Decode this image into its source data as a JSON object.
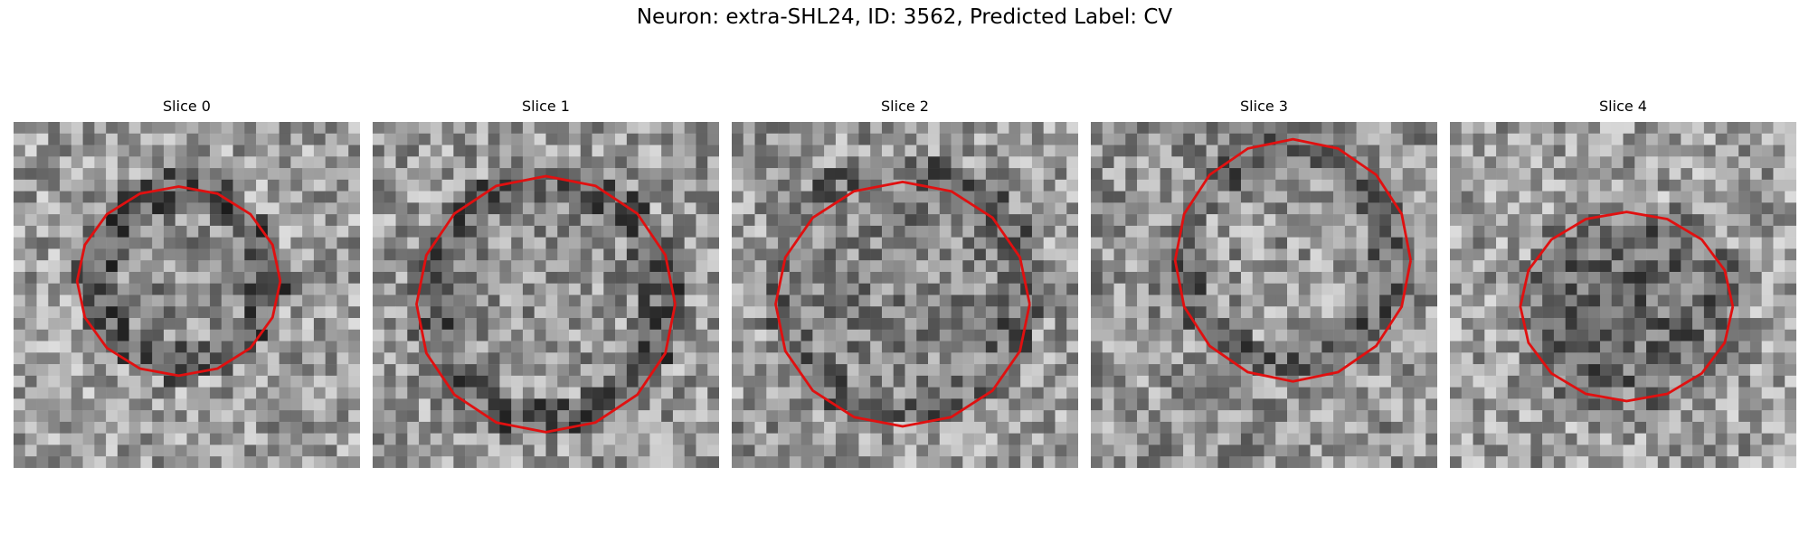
{
  "figure": {
    "suptitle": "Neuron: extra-SHL24, ID: 3562, Predicted Label: CV",
    "contour_color": "#e01010"
  },
  "panels": [
    {
      "title": "Slice 0"
    },
    {
      "title": "Slice 1"
    },
    {
      "title": "Slice 2"
    },
    {
      "title": "Slice 3"
    },
    {
      "title": "Slice 4"
    }
  ]
}
